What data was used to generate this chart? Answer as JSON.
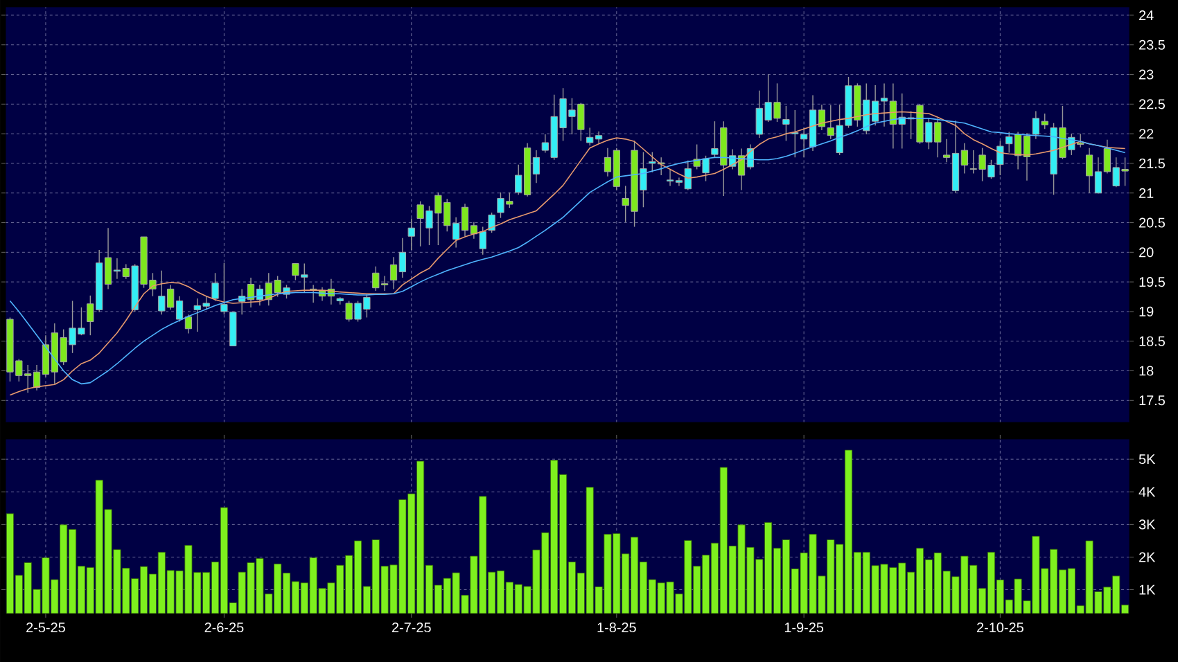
{
  "chart_data": [
    {
      "type": "candlestick",
      "categories": [
        null,
        null,
        null,
        null,
        null,
        null,
        null,
        null,
        null,
        null,
        null,
        null,
        null,
        null,
        null,
        null,
        null,
        null,
        null,
        null,
        null,
        null,
        null,
        null,
        null,
        null,
        null,
        null,
        null,
        null,
        null,
        null,
        null,
        null,
        null,
        null,
        null,
        null,
        null,
        null,
        null,
        null,
        null,
        null,
        null,
        null,
        null,
        null,
        null,
        null,
        null,
        null,
        null,
        null,
        null,
        null,
        null,
        null,
        null,
        null,
        null,
        null,
        null,
        null,
        null,
        null,
        null,
        null,
        null,
        null,
        null,
        null,
        null,
        null,
        null,
        null,
        null,
        null,
        null,
        null,
        null,
        null,
        null,
        null,
        null,
        null,
        null,
        null,
        null,
        null,
        null,
        null,
        null,
        null,
        null,
        null,
        null,
        null,
        null,
        null,
        null,
        null,
        null,
        null,
        null,
        null,
        null,
        null,
        null,
        null,
        null,
        null,
        null,
        null,
        null,
        null,
        null,
        null,
        null,
        null,
        null,
        null,
        null,
        null,
        null,
        null
      ],
      "ohlc": [
        [
          18.87,
          18.9,
          17.82,
          17.98
        ],
        [
          18.17,
          18.2,
          17.82,
          17.92
        ],
        [
          17.95,
          18.1,
          17.63,
          17.92
        ],
        [
          17.98,
          18.1,
          17.67,
          17.72
        ],
        [
          18.44,
          18.6,
          17.9,
          17.94
        ],
        [
          18.64,
          18.8,
          17.78,
          17.98
        ],
        [
          18.56,
          18.7,
          18.1,
          18.15
        ],
        [
          18.44,
          19.18,
          18.3,
          18.72
        ],
        [
          18.62,
          19.07,
          18.6,
          18.72
        ],
        [
          19.13,
          19.27,
          18.6,
          18.83
        ],
        [
          19.03,
          20.04,
          18.99,
          19.82
        ],
        [
          19.91,
          20.41,
          19.38,
          19.46
        ],
        [
          19.68,
          19.9,
          19.55,
          19.7
        ],
        [
          19.73,
          19.8,
          19.55,
          19.59
        ],
        [
          19.03,
          19.8,
          19.0,
          19.77
        ],
        [
          20.26,
          20.26,
          19.4,
          19.46
        ],
        [
          19.53,
          19.65,
          19.26,
          19.38
        ],
        [
          19.01,
          19.69,
          18.95,
          19.26
        ],
        [
          19.38,
          19.45,
          19.03,
          19.07
        ],
        [
          18.87,
          19.26,
          18.83,
          19.18
        ],
        [
          18.91,
          18.95,
          18.63,
          18.71
        ],
        [
          19.03,
          19.22,
          18.66,
          19.1
        ],
        [
          19.09,
          19.26,
          19.03,
          19.14
        ],
        [
          19.22,
          19.65,
          19.18,
          19.48
        ],
        [
          19.0,
          19.82,
          18.95,
          19.12
        ],
        [
          18.42,
          19.0,
          18.42,
          18.99
        ],
        [
          19.17,
          19.38,
          18.95,
          19.26
        ],
        [
          19.46,
          19.57,
          19.07,
          19.2
        ],
        [
          19.2,
          19.45,
          19.1,
          19.38
        ],
        [
          19.48,
          19.65,
          19.1,
          19.2
        ],
        [
          19.53,
          19.6,
          19.25,
          19.32
        ],
        [
          19.29,
          19.45,
          19.22,
          19.4
        ],
        [
          19.81,
          19.81,
          19.53,
          19.61
        ],
        [
          19.58,
          19.81,
          19.32,
          19.62
        ],
        [
          19.38,
          19.45,
          19.15,
          19.36
        ],
        [
          19.35,
          19.41,
          19.18,
          19.26
        ],
        [
          19.38,
          19.55,
          19.12,
          19.26
        ],
        [
          19.18,
          19.24,
          19.12,
          19.22
        ],
        [
          19.14,
          19.18,
          18.83,
          18.87
        ],
        [
          18.87,
          19.18,
          18.83,
          19.14
        ],
        [
          19.04,
          19.29,
          18.9,
          19.24
        ],
        [
          19.65,
          19.76,
          19.35,
          19.4
        ],
        [
          19.47,
          19.6,
          19.35,
          19.45
        ],
        [
          19.79,
          19.92,
          19.38,
          19.53
        ],
        [
          19.67,
          20.24,
          19.57,
          20.0
        ],
        [
          20.27,
          20.57,
          20.04,
          20.41
        ],
        [
          20.8,
          20.86,
          20.1,
          20.57
        ],
        [
          20.41,
          20.78,
          20.12,
          20.7
        ],
        [
          20.96,
          21.01,
          20.12,
          20.66
        ],
        [
          20.84,
          20.9,
          20.35,
          20.45
        ],
        [
          20.22,
          20.59,
          20.08,
          20.49
        ],
        [
          20.76,
          20.82,
          20.27,
          20.37
        ],
        [
          20.45,
          20.51,
          20.23,
          20.31
        ],
        [
          20.06,
          20.43,
          19.96,
          20.35
        ],
        [
          20.37,
          20.67,
          20.33,
          20.63
        ],
        [
          20.67,
          21.01,
          20.58,
          20.91
        ],
        [
          20.86,
          21.01,
          20.75,
          20.81
        ],
        [
          21.01,
          21.48,
          20.97,
          21.3
        ],
        [
          21.76,
          21.84,
          20.94,
          20.97
        ],
        [
          21.32,
          21.72,
          21.17,
          21.6
        ],
        [
          21.72,
          21.99,
          21.68,
          21.85
        ],
        [
          21.6,
          22.66,
          21.56,
          22.29
        ],
        [
          22.1,
          22.77,
          21.88,
          22.59
        ],
        [
          22.29,
          22.6,
          21.99,
          22.4
        ],
        [
          22.5,
          22.52,
          21.88,
          22.07
        ],
        [
          21.85,
          22.1,
          21.8,
          21.94
        ],
        [
          21.91,
          22.04,
          21.84,
          21.97
        ],
        [
          21.6,
          21.76,
          21.28,
          21.36
        ],
        [
          21.72,
          21.76,
          21.05,
          21.11
        ],
        [
          20.91,
          21.12,
          20.51,
          20.79
        ],
        [
          21.72,
          21.88,
          20.43,
          20.69
        ],
        [
          21.05,
          21.69,
          20.76,
          21.41
        ],
        [
          21.5,
          21.69,
          21.35,
          21.53
        ],
        [
          21.51,
          21.6,
          21.3,
          21.49
        ],
        [
          21.2,
          21.4,
          21.12,
          21.22
        ],
        [
          21.18,
          21.26,
          21.12,
          21.21
        ],
        [
          21.07,
          21.55,
          21.05,
          21.41
        ],
        [
          21.57,
          21.82,
          21.4,
          21.45
        ],
        [
          21.34,
          21.63,
          21.2,
          21.58
        ],
        [
          21.65,
          22.21,
          21.6,
          21.75
        ],
        [
          22.1,
          22.21,
          20.95,
          21.47
        ],
        [
          21.45,
          21.74,
          21.4,
          21.63
        ],
        [
          21.63,
          21.75,
          21.05,
          21.3
        ],
        [
          21.44,
          21.82,
          21.4,
          21.75
        ],
        [
          21.99,
          22.73,
          21.93,
          22.43
        ],
        [
          22.23,
          23.0,
          22.2,
          22.53
        ],
        [
          22.53,
          22.85,
          22.2,
          22.26
        ],
        [
          22.16,
          22.47,
          21.88,
          22.24
        ],
        [
          22.0,
          22.4,
          21.6,
          22.02
        ],
        [
          21.91,
          22.1,
          21.6,
          21.99
        ],
        [
          21.78,
          22.65,
          21.71,
          22.4
        ],
        [
          22.4,
          22.49,
          22.06,
          22.12
        ],
        [
          22.1,
          22.48,
          21.91,
          21.97
        ],
        [
          21.68,
          22.49,
          21.64,
          22.14
        ],
        [
          22.14,
          22.96,
          22.1,
          22.81
        ],
        [
          22.81,
          22.85,
          22.12,
          22.23
        ],
        [
          22.05,
          22.85,
          21.99,
          22.57
        ],
        [
          22.21,
          22.82,
          22.14,
          22.55
        ],
        [
          22.55,
          22.85,
          22.12,
          22.6
        ],
        [
          22.55,
          22.85,
          21.75,
          22.16
        ],
        [
          22.16,
          22.68,
          21.75,
          22.28
        ],
        [
          22.27,
          22.38,
          21.91,
          22.25
        ],
        [
          22.48,
          22.5,
          21.83,
          21.86
        ],
        [
          21.86,
          22.26,
          21.74,
          22.19
        ],
        [
          22.19,
          22.26,
          21.6,
          21.86
        ],
        [
          21.64,
          21.91,
          21.52,
          21.6
        ],
        [
          21.04,
          22.22,
          21.0,
          21.67
        ],
        [
          21.72,
          21.84,
          21.33,
          21.47
        ],
        [
          21.41,
          21.72,
          21.33,
          21.4
        ],
        [
          21.64,
          21.76,
          21.2,
          21.4
        ],
        [
          21.27,
          21.56,
          21.24,
          21.47
        ],
        [
          21.48,
          21.88,
          21.3,
          21.79
        ],
        [
          21.83,
          22.03,
          21.68,
          21.95
        ],
        [
          21.99,
          22.03,
          21.4,
          21.63
        ],
        [
          21.96,
          22.01,
          21.21,
          21.61
        ],
        [
          21.99,
          22.38,
          21.91,
          22.26
        ],
        [
          22.21,
          22.34,
          22.08,
          22.15
        ],
        [
          21.32,
          22.18,
          20.97,
          22.1
        ],
        [
          22.1,
          22.47,
          21.57,
          21.6
        ],
        [
          21.73,
          22.0,
          21.64,
          21.94
        ],
        [
          21.84,
          22.0,
          21.77,
          21.82
        ],
        [
          21.64,
          21.76,
          21.0,
          21.29
        ],
        [
          21.0,
          21.6,
          20.99,
          21.36
        ],
        [
          21.75,
          21.9,
          21.33,
          21.36
        ],
        [
          21.12,
          21.6,
          21.1,
          21.43
        ],
        [
          21.4,
          21.6,
          21.12,
          21.37
        ]
      ],
      "colors": [
        "#7ee81e",
        "#7ee81e",
        "#7ee81e",
        "#7ee81e",
        "#7ee81e",
        "#7ee81e",
        "#7ee81e",
        "#33eef5",
        "#33eef5",
        "#7ee81e",
        "#33eef5",
        "#7ee81e",
        "#33eef5",
        "#7ee81e",
        "#33eef5",
        "#7ee81e",
        "#7ee81e",
        "#33eef5",
        "#7ee81e",
        "#33eef5",
        "#7ee81e",
        "#33eef5",
        "#33eef5",
        "#33eef5",
        "#33eef5",
        "#33eef5",
        "#33eef5",
        "#7ee81e",
        "#33eef5",
        "#7ee81e",
        "#7ee81e",
        "#33eef5",
        "#7ee81e",
        "#33eef5",
        "#7ee81e",
        "#7ee81e",
        "#7ee81e",
        "#33eef5",
        "#7ee81e",
        "#33eef5",
        "#33eef5",
        "#7ee81e",
        "#7ee81e",
        "#7ee81e",
        "#33eef5",
        "#33eef5",
        "#7ee81e",
        "#33eef5",
        "#7ee81e",
        "#7ee81e",
        "#33eef5",
        "#7ee81e",
        "#7ee81e",
        "#33eef5",
        "#33eef5",
        "#33eef5",
        "#7ee81e",
        "#33eef5",
        "#7ee81e",
        "#33eef5",
        "#33eef5",
        "#33eef5",
        "#33eef5",
        "#33eef5",
        "#7ee81e",
        "#33eef5",
        "#33eef5",
        "#7ee81e",
        "#7ee81e",
        "#7ee81e",
        "#7ee81e",
        "#33eef5",
        "#33eef5",
        "#7ee81e",
        "#33eef5",
        "#33eef5",
        "#33eef5",
        "#7ee81e",
        "#33eef5",
        "#33eef5",
        "#7ee81e",
        "#33eef5",
        "#7ee81e",
        "#33eef5",
        "#33eef5",
        "#33eef5",
        "#7ee81e",
        "#33eef5",
        "#33eef5",
        "#33eef5",
        "#33eef5",
        "#7ee81e",
        "#7ee81e",
        "#33eef5",
        "#33eef5",
        "#7ee81e",
        "#33eef5",
        "#33eef5",
        "#33eef5",
        "#7ee81e",
        "#33eef5",
        "#7ee81e",
        "#7ee81e",
        "#33eef5",
        "#7ee81e",
        "#7ee81e",
        "#33eef5",
        "#7ee81e",
        "#7ee81e",
        "#7ee81e",
        "#33eef5",
        "#33eef5",
        "#33eef5",
        "#7ee81e",
        "#7ee81e",
        "#33eef5",
        "#7ee81e",
        "#33eef5",
        "#7ee81e",
        "#33eef5",
        "#7ee81e",
        "#7ee81e",
        "#33eef5",
        "#7ee81e",
        "#33eef5",
        "#7ee81e"
      ],
      "series": [
        {
          "type": "line",
          "color": "#e89a6e",
          "values": [
            17.59,
            17.65,
            17.7,
            17.73,
            17.75,
            17.77,
            17.85,
            18.0,
            18.12,
            18.18,
            18.3,
            18.47,
            18.64,
            18.85,
            19.08,
            19.3,
            19.43,
            19.47,
            19.49,
            19.48,
            19.42,
            19.33,
            19.26,
            19.2,
            19.16,
            19.14,
            19.15,
            19.16,
            19.17,
            19.22,
            19.29,
            19.34,
            19.35,
            19.36,
            19.36,
            19.36,
            19.35,
            19.33,
            19.32,
            19.31,
            19.3,
            19.3,
            19.3,
            19.3,
            19.45,
            19.55,
            19.65,
            19.73,
            19.9,
            20.05,
            20.2,
            20.26,
            20.31,
            20.35,
            20.42,
            20.48,
            20.55,
            20.6,
            20.65,
            20.7,
            20.84,
            20.98,
            21.13,
            21.34,
            21.55,
            21.76,
            21.83,
            21.89,
            21.93,
            21.91,
            21.87,
            21.74,
            21.61,
            21.48,
            21.4,
            21.32,
            21.25,
            21.27,
            21.3,
            21.33,
            21.4,
            21.48,
            21.56,
            21.7,
            21.82,
            21.91,
            21.95,
            22.0,
            22.03,
            22.08,
            22.13,
            22.18,
            22.21,
            22.24,
            22.26,
            22.29,
            22.32,
            22.34,
            22.35,
            22.36,
            22.37,
            22.36,
            22.35,
            22.34,
            22.28,
            22.21,
            22.14,
            22.0,
            21.9,
            21.83,
            21.75,
            21.68,
            21.66,
            21.65,
            21.64,
            21.66,
            21.69,
            21.72,
            21.77,
            21.82,
            21.87,
            21.83,
            21.8,
            21.77,
            21.76,
            21.75
          ]
        },
        {
          "type": "line",
          "color": "#4fb4ff",
          "values": [
            19.18,
            19.0,
            18.8,
            18.6,
            18.4,
            18.2,
            18.0,
            17.85,
            17.78,
            17.8,
            17.9,
            18.0,
            18.12,
            18.25,
            18.38,
            18.5,
            18.6,
            18.7,
            18.78,
            18.85,
            18.92,
            18.98,
            19.04,
            19.1,
            19.15,
            19.2,
            19.22,
            19.24,
            19.26,
            19.28,
            19.3,
            19.31,
            19.32,
            19.32,
            19.32,
            19.31,
            19.3,
            19.3,
            19.29,
            19.28,
            19.28,
            19.29,
            19.29,
            19.3,
            19.34,
            19.42,
            19.5,
            19.57,
            19.63,
            19.69,
            19.74,
            19.79,
            19.84,
            19.88,
            19.92,
            19.97,
            20.02,
            20.08,
            20.17,
            20.27,
            20.37,
            20.48,
            20.59,
            20.73,
            20.87,
            21.01,
            21.1,
            21.19,
            21.27,
            21.29,
            21.31,
            21.33,
            21.37,
            21.41,
            21.46,
            21.5,
            21.53,
            21.55,
            21.58,
            21.6,
            21.6,
            21.59,
            21.58,
            21.57,
            21.56,
            21.56,
            21.58,
            21.62,
            21.67,
            21.73,
            21.78,
            21.83,
            21.88,
            21.94,
            21.99,
            22.05,
            22.12,
            22.18,
            22.21,
            22.24,
            22.26,
            22.26,
            22.26,
            22.26,
            22.24,
            22.22,
            22.2,
            22.18,
            22.13,
            22.08,
            22.03,
            22.02,
            22.0,
            21.99,
            21.98,
            21.97,
            21.96,
            21.95,
            21.92,
            21.9,
            21.87,
            21.83,
            21.8,
            21.76,
            21.72,
            21.68
          ]
        }
      ],
      "ylim": [
        17.13,
        24.14
      ],
      "yticks": [
        17.5,
        18,
        18.5,
        19,
        19.5,
        20,
        20.5,
        21,
        21.5,
        22,
        22.5,
        23,
        23.5,
        24
      ],
      "grid": true,
      "tick_labels": "y"
    },
    {
      "type": "bar",
      "categories": [
        null,
        null,
        null,
        null,
        "2-5-25",
        null,
        null,
        null,
        null,
        null,
        null,
        null,
        null,
        null,
        null,
        null,
        null,
        null,
        null,
        null,
        null,
        null,
        null,
        null,
        "2-6-25",
        null,
        null,
        null,
        null,
        null,
        null,
        null,
        null,
        null,
        null,
        null,
        null,
        null,
        null,
        null,
        null,
        null,
        null,
        null,
        null,
        "2-7-25",
        null,
        null,
        null,
        null,
        null,
        null,
        null,
        null,
        null,
        null,
        null,
        null,
        null,
        null,
        null,
        null,
        null,
        null,
        null,
        null,
        null,
        null,
        "1-8-25",
        null,
        null,
        null,
        null,
        null,
        null,
        null,
        null,
        null,
        null,
        null,
        null,
        null,
        null,
        null,
        null,
        null,
        null,
        null,
        null,
        "1-9-25",
        null,
        null,
        null,
        null,
        null,
        null,
        null,
        null,
        null,
        null,
        null,
        null,
        null,
        null,
        null,
        null,
        null,
        null,
        null,
        null,
        null,
        "2-10-25",
        null,
        null,
        null,
        null,
        null,
        null,
        null,
        null,
        null,
        null,
        null,
        null,
        null,
        null
      ],
      "values": [
        3.33,
        1.44,
        1.83,
        1.01,
        1.98,
        1.31,
        2.99,
        2.85,
        1.72,
        1.68,
        4.36,
        3.46,
        2.23,
        1.66,
        1.34,
        1.71,
        1.48,
        2.15,
        1.59,
        1.58,
        2.36,
        1.53,
        1.53,
        1.85,
        3.52,
        0.6,
        1.54,
        1.83,
        1.96,
        0.87,
        1.79,
        1.51,
        1.25,
        1.21,
        1.98,
        1.04,
        1.21,
        1.75,
        2.05,
        2.5,
        1.1,
        2.53,
        1.72,
        1.76,
        3.76,
        3.94,
        4.94,
        1.75,
        1.14,
        1.35,
        1.52,
        0.83,
        2.03,
        3.86,
        1.54,
        1.58,
        1.23,
        1.16,
        1.1,
        2.22,
        2.75,
        4.97,
        4.53,
        1.85,
        1.51,
        4.14,
        1.09,
        2.7,
        2.72,
        2.1,
        2.61,
        1.85,
        1.31,
        1.21,
        1.24,
        0.87,
        2.51,
        1.72,
        2.06,
        2.43,
        4.75,
        2.34,
        2.99,
        2.3,
        1.93,
        3.06,
        2.27,
        2.53,
        1.64,
        2.13,
        2.7,
        1.42,
        2.53,
        2.39,
        5.28,
        2.15,
        2.15,
        1.74,
        1.78,
        1.68,
        1.82,
        1.54,
        2.27,
        1.92,
        2.13,
        1.57,
        1.4,
        2.03,
        1.75,
        1.04,
        2.15,
        1.3,
        0.69,
        1.33,
        0.66,
        2.64,
        1.65,
        2.24,
        1.61,
        1.65,
        0.51,
        2.5,
        0.94,
        1.08,
        1.42,
        0.53
      ],
      "color": "#7ef01e",
      "ylim": [
        0.27,
        5.62
      ],
      "yticks": [
        {
          "value": 1,
          "label": "1K"
        },
        {
          "value": 2,
          "label": "2K"
        },
        {
          "value": 3,
          "label": "3K"
        },
        {
          "value": 4,
          "label": "4K"
        },
        {
          "value": 5,
          "label": "5K"
        }
      ],
      "grid": true
    }
  ]
}
